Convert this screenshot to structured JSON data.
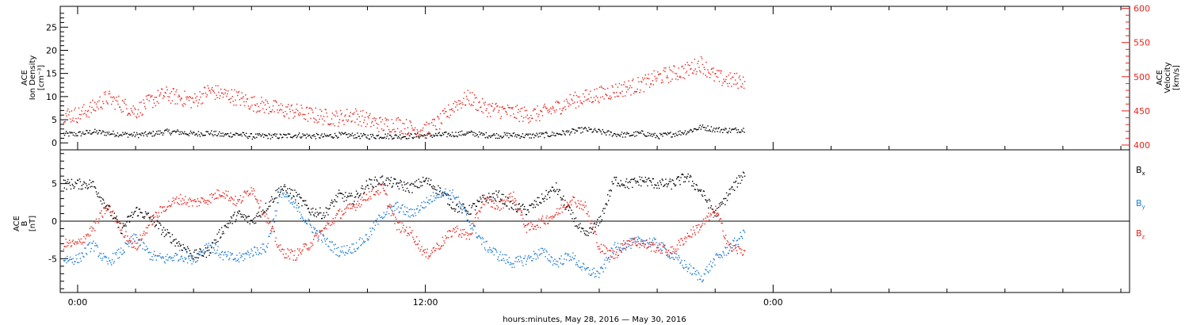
{
  "chart_data": [
    {
      "panel": "top",
      "type": "scatter",
      "left_axis": {
        "label_lines": [
          "ACE",
          "Ion Density",
          "[cm⁻³]"
        ],
        "ylim": [
          -1.5,
          29.5
        ],
        "ticks": [
          0,
          5,
          10,
          15,
          20,
          25
        ],
        "color": "#000000"
      },
      "right_axis": {
        "label_lines": [
          "ACE",
          "Velocity",
          "[km/s]"
        ],
        "ylim": [
          393,
          603
        ],
        "ticks": [
          400,
          450,
          500,
          550,
          600
        ],
        "color": "#e8231d"
      },
      "x_hours": [
        0,
        0.5,
        1,
        1.5,
        2,
        2.5,
        3,
        3.5,
        4,
        4.5,
        5,
        5.5,
        6,
        6.5,
        7,
        7.5,
        8,
        8.5,
        9,
        9.5,
        10,
        10.5,
        11,
        11.5,
        12,
        12.5,
        13,
        13.5,
        14,
        14.5,
        15,
        15.5,
        16,
        16.5,
        17,
        17.5,
        18,
        18.5,
        19,
        19.5,
        20,
        20.5,
        21,
        21.5,
        22,
        22.5,
        23
      ],
      "series": [
        {
          "key": "density",
          "axis": "left",
          "color": "#000000",
          "values": [
            2.0,
            2.5,
            2.2,
            2.0,
            1.8,
            2.0,
            2.5,
            2.4,
            2.0,
            2.3,
            1.8,
            2.0,
            1.5,
            1.6,
            1.5,
            1.8,
            1.6,
            1.5,
            1.8,
            1.7,
            1.5,
            1.6,
            1.5,
            1.6,
            1.7,
            1.8,
            2.0,
            2.2,
            1.8,
            1.7,
            1.8,
            1.6,
            1.8,
            2.0,
            2.5,
            3.0,
            2.5,
            2.0,
            1.8,
            2.2,
            1.5,
            2.0,
            2.5,
            3.5,
            3.0,
            2.8,
            3.0
          ]
        },
        {
          "key": "velocity",
          "axis": "right",
          "color": "#e8231d",
          "values": [
            445,
            455,
            470,
            460,
            450,
            465,
            475,
            470,
            465,
            480,
            475,
            470,
            462,
            458,
            452,
            450,
            445,
            442,
            440,
            445,
            437,
            430,
            432,
            425,
            422,
            435,
            460,
            470,
            455,
            452,
            448,
            445,
            447,
            455,
            465,
            470,
            475,
            480,
            485,
            490,
            500,
            505,
            510,
            520,
            500,
            495,
            495
          ]
        }
      ]
    },
    {
      "panel": "bottom",
      "type": "scatter",
      "left_axis": {
        "label_lines": [
          "ACE",
          "B",
          "[nT]"
        ],
        "ylim": [
          -9.5,
          9.5
        ],
        "ticks": [
          -5,
          0,
          5
        ],
        "color": "#000000"
      },
      "zero_line": true,
      "legend": [
        {
          "label": "B",
          "sub": "x",
          "color": "#000000"
        },
        {
          "label": "B",
          "sub": "y",
          "color": "#1e7bd0"
        },
        {
          "label": "B",
          "sub": "z",
          "color": "#e8231d"
        }
      ],
      "legend_placement": "right",
      "x_hours": [
        0,
        0.5,
        1,
        1.5,
        2,
        2.5,
        3,
        3.5,
        4,
        4.5,
        5,
        5.5,
        6,
        6.5,
        7,
        7.5,
        8,
        8.5,
        9,
        9.5,
        10,
        10.5,
        11,
        11.5,
        12,
        12.5,
        13,
        13.5,
        14,
        14.5,
        15,
        15.5,
        16,
        16.5,
        17,
        17.5,
        18,
        18.5,
        19,
        19.5,
        20,
        20.5,
        21,
        21.5,
        22,
        22.5,
        23
      ],
      "series": [
        {
          "key": "Bx",
          "color": "#000000",
          "values": [
            5.0,
            5.0,
            2.0,
            -1.0,
            1.5,
            0.5,
            -1.5,
            -3.0,
            -4.5,
            -4.0,
            -1.0,
            1.0,
            0.0,
            2.0,
            4.5,
            3.5,
            1.5,
            1.0,
            3.5,
            3.0,
            5.0,
            5.5,
            5.0,
            4.5,
            5.5,
            4.0,
            2.0,
            1.5,
            3.0,
            3.5,
            2.0,
            1.5,
            3.0,
            4.5,
            1.0,
            -2.0,
            0.0,
            5.5,
            5.0,
            5.5,
            5.0,
            5.0,
            6.0,
            4.0,
            1.0,
            4.0,
            6.5
          ]
        },
        {
          "key": "By",
          "color": "#1e7bd0",
          "values": [
            -5.0,
            -3.0,
            -5.5,
            -4.0,
            -2.0,
            -4.5,
            -5.0,
            -4.5,
            -5.0,
            -3.0,
            -4.5,
            -5.0,
            -4.0,
            -3.5,
            4.0,
            2.0,
            -0.5,
            -2.5,
            -4.0,
            -3.5,
            -2.0,
            1.0,
            2.0,
            1.0,
            2.5,
            4.0,
            3.5,
            0.0,
            -3.0,
            -4.5,
            -5.5,
            -5.0,
            -4.0,
            -5.5,
            -4.5,
            -6.5,
            -7.0,
            -3.5,
            -3.0,
            -2.5,
            -3.0,
            -4.5,
            -6.0,
            -7.5,
            -5.0,
            -3.5,
            -1.5
          ]
        },
        {
          "key": "Bz",
          "color": "#e8231d",
          "values": [
            -3.0,
            -1.0,
            2.0,
            -1.0,
            -3.5,
            0.0,
            2.0,
            3.0,
            2.5,
            3.0,
            4.0,
            2.5,
            4.5,
            0.5,
            -4.0,
            -4.5,
            -3.0,
            -1.0,
            1.0,
            2.0,
            3.5,
            4.5,
            -0.5,
            -1.5,
            -4.5,
            -3.0,
            -1.0,
            -2.0,
            3.0,
            2.0,
            3.5,
            -1.0,
            0.0,
            1.0,
            3.0,
            2.0,
            -3.5,
            -4.5,
            -2.5,
            -3.0,
            -3.5,
            -4.0,
            -2.0,
            -0.5,
            1.5,
            -3.5,
            -4.0
          ]
        }
      ]
    }
  ],
  "x_axis": {
    "title": "hours:minutes, May 28, 2016 — May 30, 2016",
    "xlim": [
      -0.6,
      36.3
    ],
    "major_ticks": [
      {
        "hour": 0,
        "label": "0:00"
      },
      {
        "hour": 12,
        "label": "12:00"
      },
      {
        "hour": 24,
        "label": "0:00"
      }
    ],
    "minor_tick_step_hours": 2
  }
}
